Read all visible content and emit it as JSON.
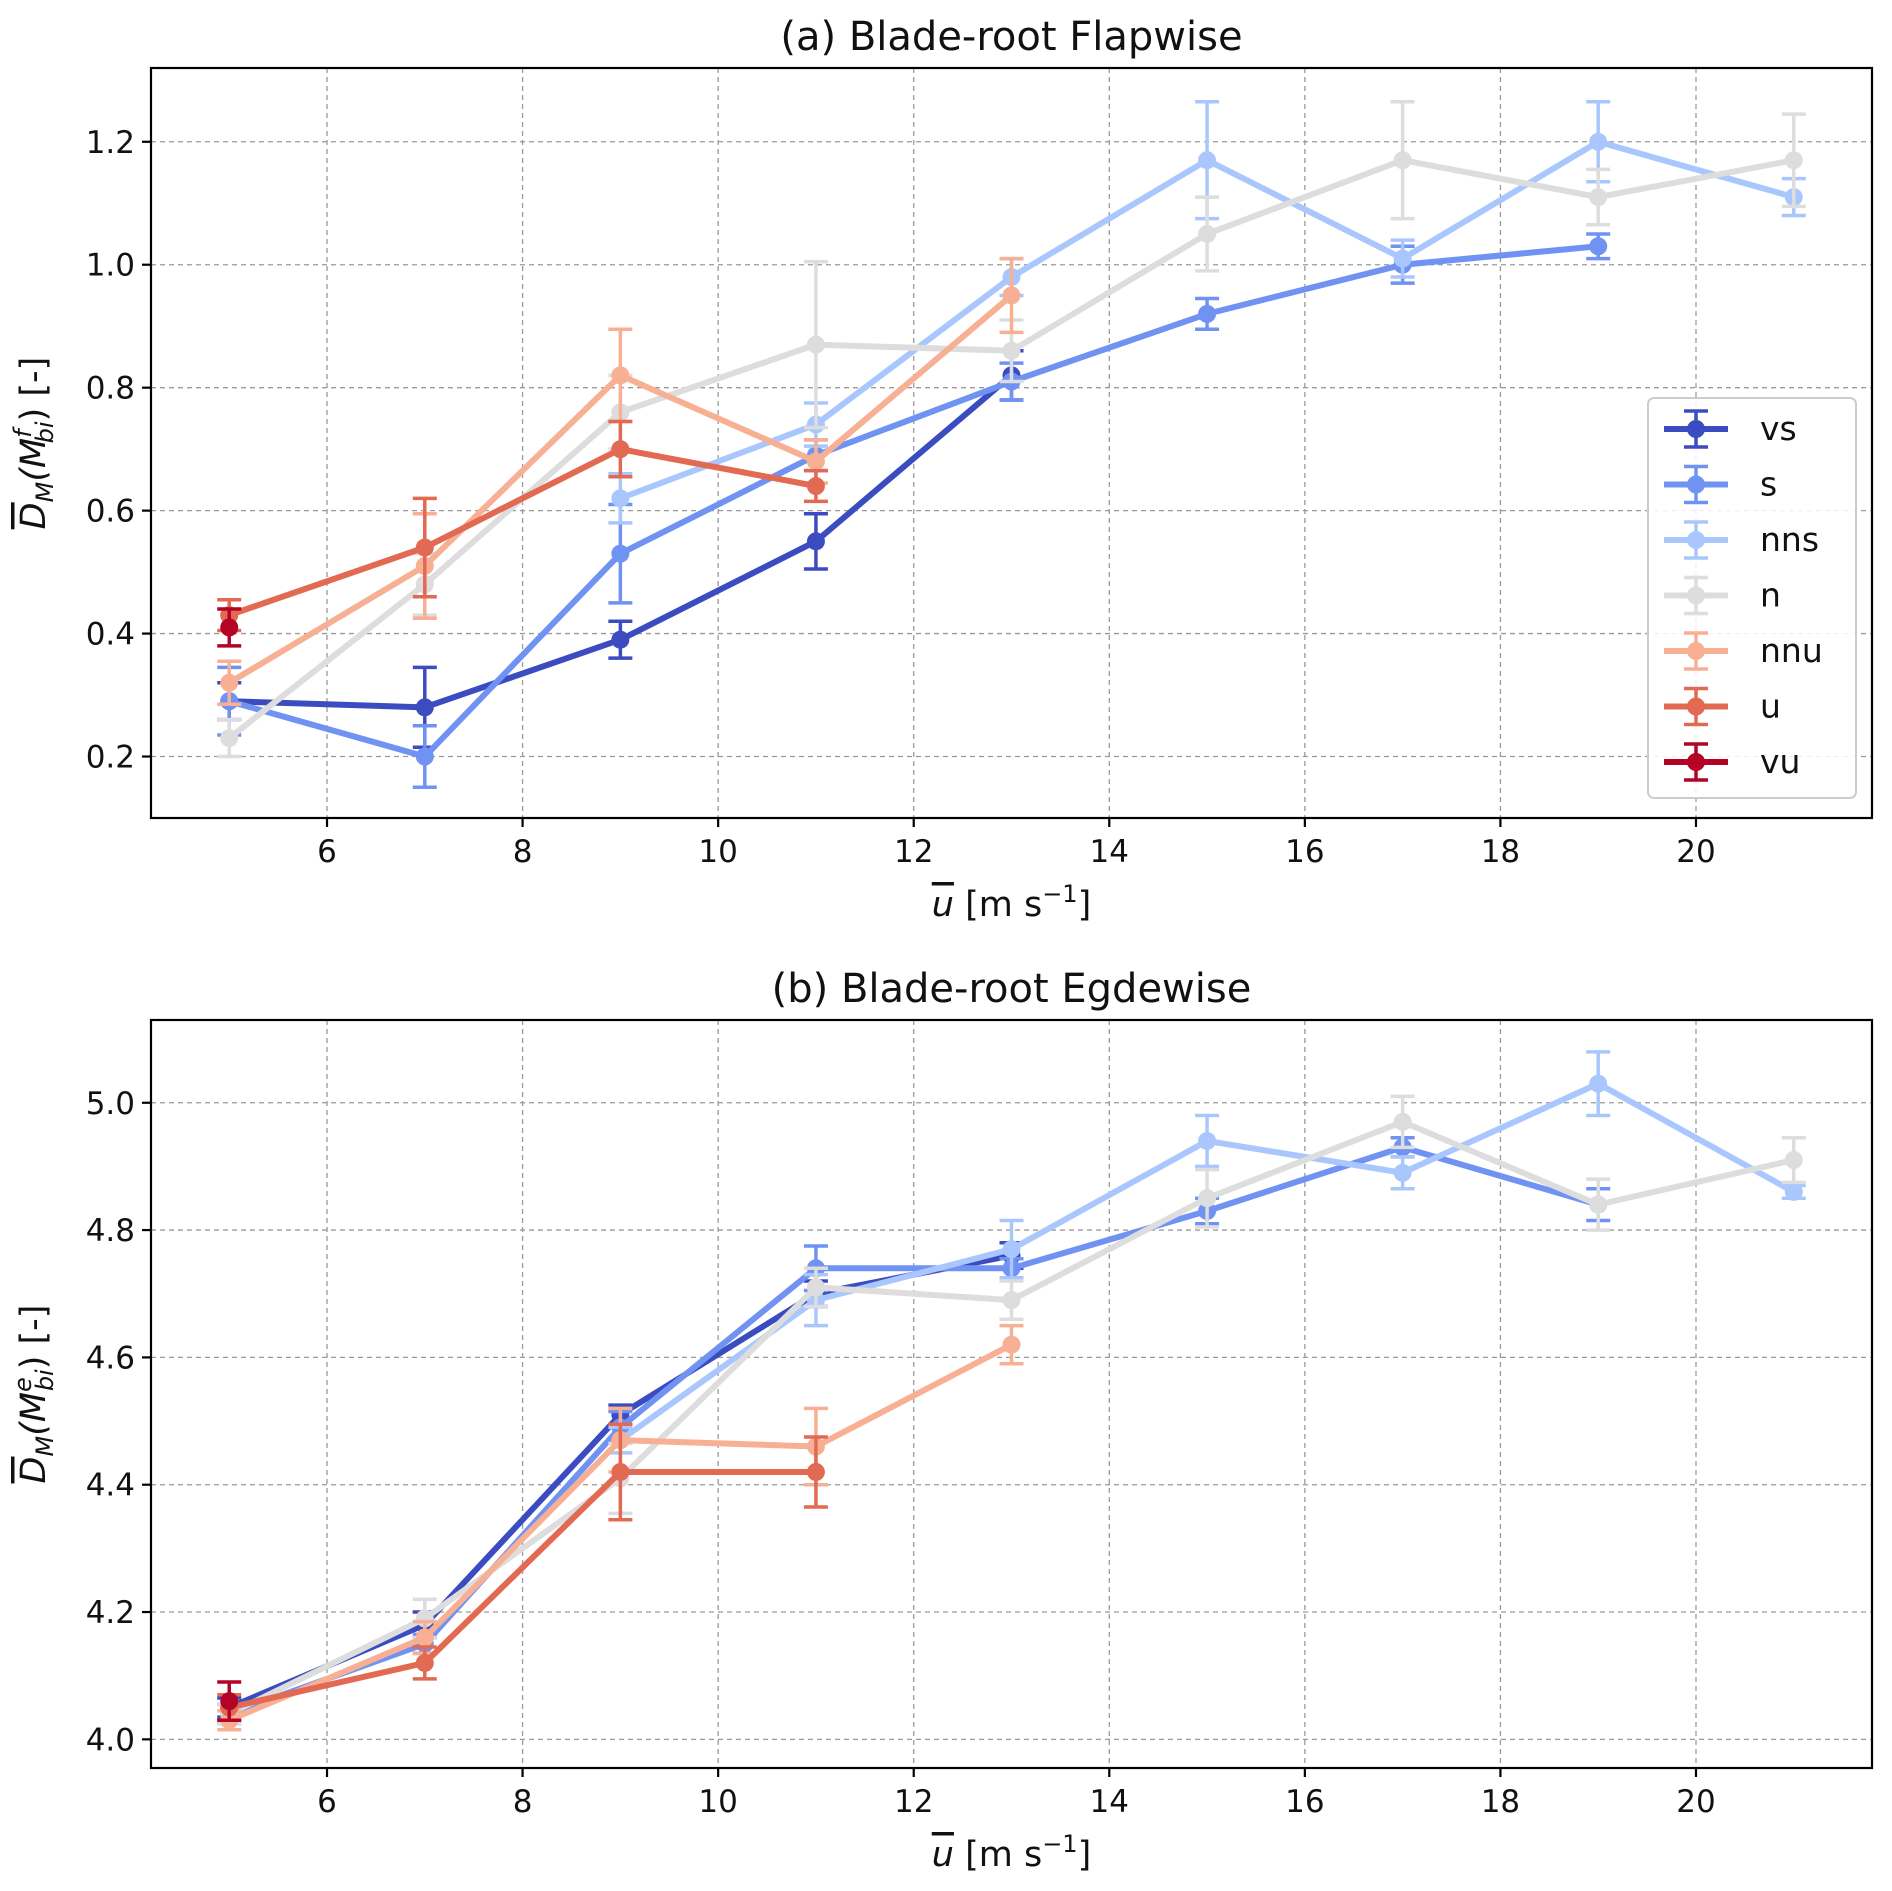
{
  "chart_data": [
    {
      "type": "line",
      "title": "(a) Blade-root Flapwise",
      "xlabel": "u [m s",
      "xlabel_sup": "−1",
      "xlabel_close": "]",
      "ylabel": "D_M(M_bi^f) [-]",
      "ylabel_parts": {
        "main": "D",
        "sub": "M",
        "open": "(M",
        "sup": "f",
        "sub2": "bi",
        "close": ") [-]"
      },
      "xlim": [
        4.2,
        21.8
      ],
      "ylim": [
        0.1,
        1.32
      ],
      "xticks": [
        6,
        8,
        10,
        12,
        14,
        16,
        18,
        20
      ],
      "yticks": [
        0.2,
        0.4,
        0.6,
        0.8,
        1.0,
        1.2
      ],
      "ytick_labels": [
        "0.2",
        "0.4",
        "0.6",
        "0.8",
        "1.0",
        "1.2"
      ],
      "legend_position": "center-right",
      "grid": true,
      "series": [
        {
          "name": "vs",
          "color": "#3b4cc0",
          "x": [
            5,
            7,
            9,
            11,
            13
          ],
          "y": [
            0.29,
            0.28,
            0.39,
            0.55,
            0.82
          ],
          "err": [
            0.03,
            0.065,
            0.03,
            0.045,
            0.04
          ]
        },
        {
          "name": "s",
          "color": "#6f92f3",
          "x": [
            5,
            7,
            9,
            11,
            13,
            15,
            17,
            19
          ],
          "y": [
            0.29,
            0.2,
            0.53,
            0.69,
            0.81,
            0.92,
            1.0,
            1.03
          ],
          "err": [
            0.055,
            0.05,
            0.08,
            0.025,
            0.03,
            0.025,
            0.03,
            0.02
          ]
        },
        {
          "name": "nns",
          "color": "#aac7fd",
          "x": [
            9,
            11,
            13,
            15,
            17,
            19,
            21
          ],
          "y": [
            0.62,
            0.74,
            0.98,
            1.17,
            1.01,
            1.2,
            1.11
          ],
          "err": [
            0.04,
            0.035,
            0.03,
            0.095,
            0.03,
            0.065,
            0.03
          ]
        },
        {
          "name": "n",
          "color": "#dddddd",
          "x": [
            5,
            7,
            9,
            11,
            13,
            15,
            17,
            19,
            21
          ],
          "y": [
            0.23,
            0.48,
            0.76,
            0.87,
            0.86,
            1.05,
            1.17,
            1.11,
            1.17
          ],
          "err": [
            0.03,
            0.05,
            0.06,
            0.135,
            0.05,
            0.06,
            0.095,
            0.045,
            0.075
          ]
        },
        {
          "name": "nnu",
          "color": "#f7b093",
          "x": [
            5,
            7,
            9,
            11,
            13
          ],
          "y": [
            0.32,
            0.51,
            0.82,
            0.68,
            0.95
          ],
          "err": [
            0.035,
            0.085,
            0.075,
            0.035,
            0.06
          ]
        },
        {
          "name": "u",
          "color": "#e26952",
          "x": [
            5,
            7,
            9,
            11
          ],
          "y": [
            0.43,
            0.54,
            0.7,
            0.64
          ],
          "err": [
            0.025,
            0.08,
            0.045,
            0.025
          ]
        },
        {
          "name": "vu",
          "color": "#b40426",
          "x": [
            5
          ],
          "y": [
            0.41
          ],
          "err": [
            0.03
          ]
        }
      ]
    },
    {
      "type": "line",
      "title": "(b) Blade-root Egdewise",
      "xlabel": "u [m s",
      "xlabel_sup": "−1",
      "xlabel_close": "]",
      "ylabel": "D_M(M_bi^e) [-]",
      "ylabel_parts": {
        "main": "D",
        "sub": "M",
        "open": "(M",
        "sup": "e",
        "sub2": "bi",
        "close": ") [-]"
      },
      "xlim": [
        4.2,
        21.8
      ],
      "ylim": [
        3.955,
        5.13
      ],
      "xticks": [
        6,
        8,
        10,
        12,
        14,
        16,
        18,
        20
      ],
      "yticks": [
        4.0,
        4.2,
        4.4,
        4.6,
        4.8,
        5.0
      ],
      "ytick_labels": [
        "4.0",
        "4.2",
        "4.4",
        "4.6",
        "4.8",
        "5.0"
      ],
      "grid": true,
      "series": [
        {
          "name": "vs",
          "color": "#3b4cc0",
          "x": [
            5,
            7,
            9,
            11,
            13
          ],
          "y": [
            4.05,
            4.18,
            4.51,
            4.7,
            4.76
          ],
          "err": [
            0.015,
            0.02,
            0.015,
            0.02,
            0.02
          ]
        },
        {
          "name": "s",
          "color": "#6f92f3",
          "x": [
            5,
            7,
            9,
            11,
            13,
            15,
            17,
            19
          ],
          "y": [
            4.04,
            4.15,
            4.49,
            4.74,
            4.74,
            4.83,
            4.93,
            4.84
          ],
          "err": [
            0.015,
            0.015,
            0.025,
            0.035,
            0.015,
            0.02,
            0.015,
            0.025
          ]
        },
        {
          "name": "nns",
          "color": "#aac7fd",
          "x": [
            9,
            11,
            13,
            15,
            17,
            19,
            21
          ],
          "y": [
            4.47,
            4.69,
            4.77,
            4.94,
            4.89,
            5.03,
            4.86
          ],
          "err": [
            0.02,
            0.04,
            0.045,
            0.04,
            0.025,
            0.05,
            0.01
          ]
        },
        {
          "name": "n",
          "color": "#dddddd",
          "x": [
            5,
            7,
            9,
            11,
            13,
            15,
            17,
            19,
            21
          ],
          "y": [
            4.04,
            4.19,
            4.41,
            4.71,
            4.69,
            4.85,
            4.97,
            4.84,
            4.91
          ],
          "err": [
            0.015,
            0.03,
            0.055,
            0.03,
            0.03,
            0.045,
            0.04,
            0.04,
            0.035
          ]
        },
        {
          "name": "nnu",
          "color": "#f7b093",
          "x": [
            5,
            7,
            9,
            11,
            13
          ],
          "y": [
            4.03,
            4.16,
            4.47,
            4.46,
            4.62
          ],
          "err": [
            0.015,
            0.025,
            0.05,
            0.06,
            0.03
          ]
        },
        {
          "name": "u",
          "color": "#e26952",
          "x": [
            5,
            7,
            9,
            11
          ],
          "y": [
            4.05,
            4.12,
            4.42,
            4.42
          ],
          "err": [
            0.02,
            0.025,
            0.075,
            0.055
          ]
        },
        {
          "name": "vu",
          "color": "#b40426",
          "x": [
            5
          ],
          "y": [
            4.06
          ],
          "err": [
            0.03
          ]
        }
      ]
    }
  ]
}
